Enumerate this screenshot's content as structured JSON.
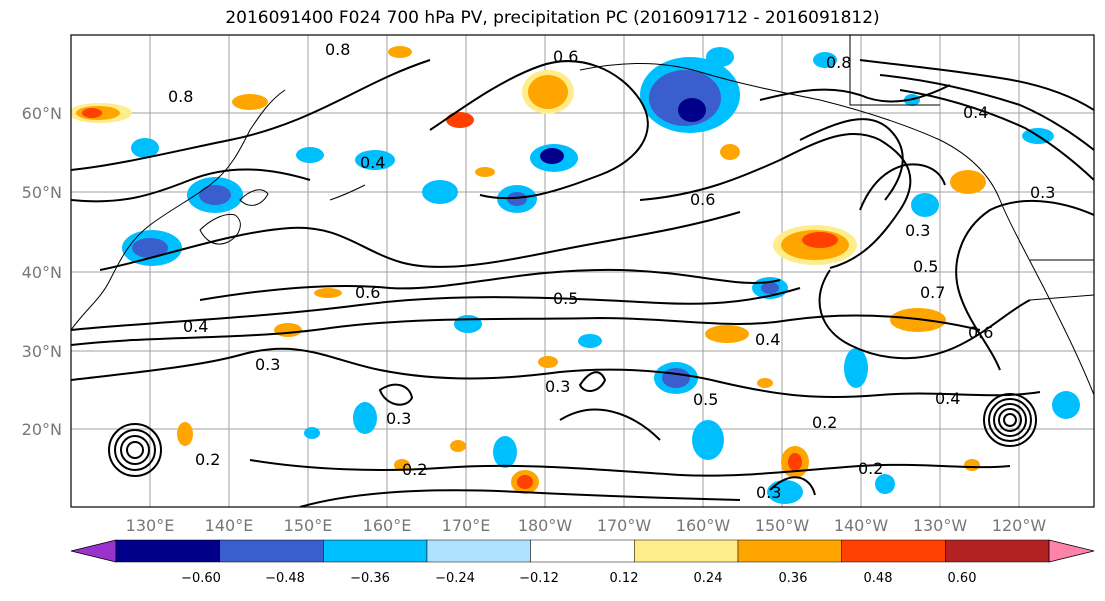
{
  "title": "2016091400 F024 700 hPa PV, precipitation PC (2016091712 - 2016091812)",
  "lat_labels": [
    "60°N",
    "50°N",
    "40°N",
    "30°N",
    "20°N"
  ],
  "lon_labels": [
    "130°E",
    "140°E",
    "150°E",
    "160°E",
    "170°E",
    "180°W",
    "170°W",
    "160°W",
    "150°W",
    "140°W",
    "130°W",
    "120°W"
  ],
  "colorbar": {
    "ticks": [
      "−0.60",
      "−0.48",
      "−0.36",
      "−0.24",
      "−0.12",
      "0.12",
      "0.24",
      "0.36",
      "0.48",
      "0.60"
    ],
    "colors": [
      "#9a32cd",
      "#00008b",
      "#3a5fcd",
      "#00bfff",
      "#b0e2ff",
      "#ffffff",
      "#ffec8b",
      "#ffa500",
      "#ff4000",
      "#b22222",
      "#ff82ab"
    ]
  },
  "contour_labels": [
    "0.8",
    "0.6",
    "0.4",
    "0.3",
    "0.5",
    "0.6",
    "0.4",
    "0.3",
    "0.2",
    "0.3",
    "0.2",
    "0.5",
    "0.4",
    "0.3",
    "0.2",
    "0.8",
    "0.6",
    "0.7",
    "0.4",
    "0.5",
    "0.3",
    "0.3",
    "0.2",
    "0.6",
    "0.8",
    "0.4"
  ]
}
